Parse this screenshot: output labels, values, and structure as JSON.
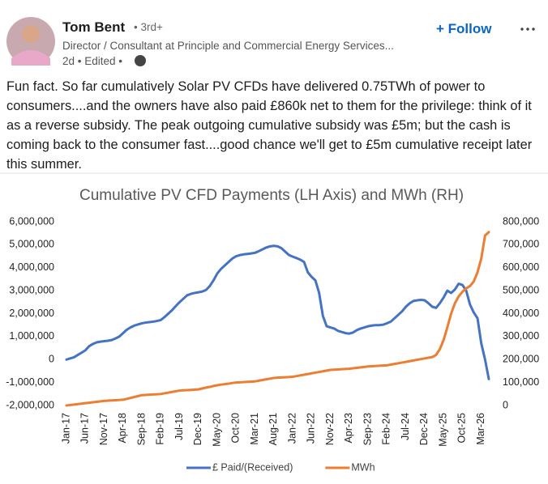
{
  "post": {
    "author": "Tom Bent",
    "degree": "• 3rd+",
    "headline": "Director / Consultant at Principle and Commercial Energy Services...",
    "meta": "2d • Edited •",
    "follow": "+ Follow",
    "body": "Fun fact. So far cumulatively Solar PV CFDs have delivered 0.75TWh of power to consumers....and the owners have also paid £860k net to them for the privilege: think of it as a reverse subsidy. The peak outgoing cumulative subsidy was £5m; but the cash is coming back to the consumer fast....good chance we'll get to £5m cumulative receipt later this summer."
  },
  "chart_data": {
    "type": "line",
    "title": "Cumulative PV CFD Payments (LH Axis) and MWh (RH)",
    "categories": [
      "Jan-17",
      null,
      null,
      null,
      null,
      "Jun-17",
      null,
      null,
      null,
      null,
      "Nov-17",
      null,
      null,
      null,
      null,
      "Apr-18",
      null,
      null,
      null,
      null,
      "Sep-18",
      null,
      null,
      null,
      null,
      "Feb-19",
      null,
      null,
      null,
      null,
      "Jul-19",
      null,
      null,
      null,
      null,
      "Dec-19",
      null,
      null,
      null,
      null,
      "May-20",
      null,
      null,
      null,
      null,
      "Oct-20",
      null,
      null,
      null,
      null,
      "Mar-21",
      null,
      null,
      null,
      null,
      "Aug-21",
      null,
      null,
      null,
      null,
      "Jan-22",
      null,
      null,
      null,
      null,
      "Jun-22",
      null,
      null,
      null,
      null,
      "Nov-22",
      null,
      null,
      null,
      null,
      "Apr-23",
      null,
      null,
      null,
      null,
      "Sep-23",
      null,
      null,
      null,
      null,
      "Feb-24",
      null,
      null,
      null,
      null,
      "Jul-24",
      null,
      null,
      null,
      null,
      "Dec-24",
      null,
      null,
      null,
      null,
      "May-25",
      null,
      null,
      null,
      null,
      "Oct-25",
      null,
      null,
      null,
      null,
      "Mar-26",
      null,
      null
    ],
    "series": [
      {
        "name": "£ Paid/(Received)",
        "color": "#4472c4",
        "values": [
          0,
          50000,
          100000,
          200000,
          300000,
          400000,
          580000,
          680000,
          750000,
          780000,
          800000,
          820000,
          850000,
          920000,
          1000000,
          1150000,
          1300000,
          1400000,
          1480000,
          1530000,
          1580000,
          1610000,
          1630000,
          1650000,
          1680000,
          1720000,
          1850000,
          2000000,
          2150000,
          2330000,
          2500000,
          2650000,
          2800000,
          2860000,
          2900000,
          2930000,
          2960000,
          3030000,
          3200000,
          3450000,
          3750000,
          3950000,
          4100000,
          4250000,
          4400000,
          4500000,
          4550000,
          4580000,
          4600000,
          4620000,
          4650000,
          4720000,
          4800000,
          4880000,
          4930000,
          4950000,
          4930000,
          4850000,
          4700000,
          4550000,
          4480000,
          4420000,
          4350000,
          4250000,
          3800000,
          3600000,
          3450000,
          2900000,
          1900000,
          1450000,
          1400000,
          1350000,
          1250000,
          1200000,
          1150000,
          1130000,
          1180000,
          1280000,
          1350000,
          1400000,
          1450000,
          1480000,
          1500000,
          1500000,
          1520000,
          1580000,
          1650000,
          1800000,
          1950000,
          2100000,
          2300000,
          2450000,
          2550000,
          2580000,
          2600000,
          2580000,
          2450000,
          2300000,
          2250000,
          2450000,
          2700000,
          3000000,
          2900000,
          3050000,
          3300000,
          3250000,
          3000000,
          2400000,
          2050000,
          1800000,
          700000,
          0,
          -850000
        ]
      },
      {
        "name": "MWh",
        "color": "#ed7d31",
        "axis": "y2",
        "values": [
          0,
          2000,
          4000,
          6000,
          8000,
          10000,
          12000,
          14000,
          16000,
          18000,
          20000,
          21000,
          22000,
          23000,
          24000,
          25000,
          29000,
          33000,
          37000,
          41000,
          45000,
          46000,
          47000,
          48000,
          49000,
          50000,
          53000,
          56000,
          59000,
          62000,
          65000,
          66000,
          67000,
          68000,
          69000,
          70000,
          74000,
          78000,
          81000,
          85000,
          88000,
          91000,
          93000,
          95000,
          98000,
          100000,
          101000,
          102000,
          103000,
          104000,
          105000,
          108000,
          111000,
          114000,
          117000,
          120000,
          121000,
          122000,
          123000,
          124000,
          125000,
          128000,
          131000,
          134000,
          137000,
          140000,
          143000,
          146000,
          149000,
          152000,
          155000,
          156000,
          157000,
          158000,
          159000,
          160000,
          162000,
          164000,
          166000,
          168000,
          170000,
          171000,
          172000,
          173000,
          174000,
          175000,
          178000,
          181000,
          184000,
          187000,
          190000,
          193000,
          196000,
          199000,
          202000,
          205000,
          208000,
          211000,
          220000,
          245000,
          285000,
          340000,
          400000,
          445000,
          475000,
          495000,
          510000,
          520000,
          540000,
          580000,
          640000,
          740000,
          755000
        ]
      }
    ],
    "ylim": [
      -2000000,
      6000000
    ],
    "yticks": [
      {
        "value": -2000000,
        "label": "-2,000,000"
      },
      {
        "value": -1000000,
        "label": "-1,000,000"
      },
      0,
      {
        "value": 1000000,
        "label": "1,000,000"
      },
      {
        "value": 2000000,
        "label": "2,000,000"
      },
      {
        "value": 3000000,
        "label": "3,000,000"
      },
      {
        "value": 4000000,
        "label": "4,000,000"
      },
      {
        "value": 5000000,
        "label": "5,000,000"
      },
      {
        "value": 6000000,
        "label": "6,000,000"
      }
    ],
    "y2lim": [
      0,
      800000
    ],
    "y2ticks": [
      0,
      {
        "value": 100000,
        "label": "100,000"
      },
      {
        "value": 200000,
        "label": "200,000"
      },
      {
        "value": 300000,
        "label": "300,000"
      },
      {
        "value": 400000,
        "label": "400,000"
      },
      {
        "value": 500000,
        "label": "500,000"
      },
      {
        "value": 600000,
        "label": "600,000"
      },
      {
        "value": 700000,
        "label": "700,000"
      },
      {
        "value": 800000,
        "label": "800,000"
      }
    ],
    "grid": false,
    "legend": "bottom"
  }
}
